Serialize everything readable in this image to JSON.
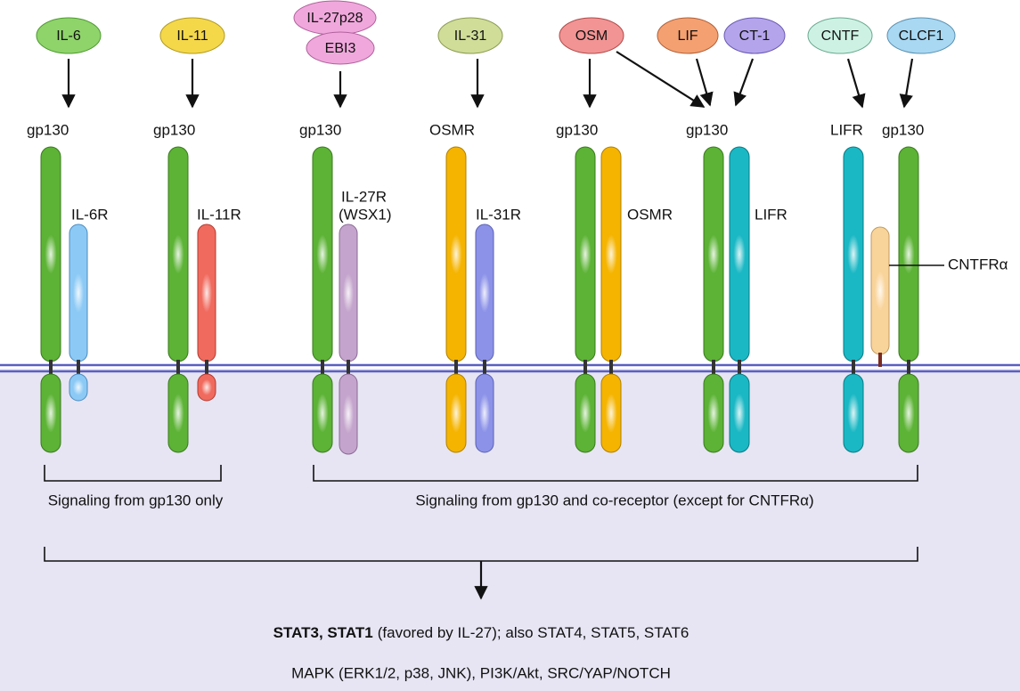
{
  "ligands": [
    {
      "label": "IL-6"
    },
    {
      "label": "IL-11"
    },
    {
      "label": "IL-27p28"
    },
    {
      "label": "EBI3"
    },
    {
      "label": "IL-31"
    },
    {
      "label": "OSM"
    },
    {
      "label": "LIF"
    },
    {
      "label": "CT-1"
    },
    {
      "label": "CNTF"
    },
    {
      "label": "CLCF1"
    }
  ],
  "receptor_labels": [
    "gp130",
    "IL-6R",
    "gp130",
    "IL-11R",
    "gp130",
    "IL-27R",
    "(WSX1)",
    "OSMR",
    "IL-31R",
    "gp130",
    "OSMR",
    "gp130",
    "LIFR",
    "LIFR",
    "gp130",
    "CNTFRα"
  ],
  "groups": [
    "Signaling from gp130 only",
    "Signaling from gp130 and co-receptor (except for CNTFRα)"
  ],
  "outputs": {
    "line1_bold": "STAT3, STAT1",
    "line1_rest": "(favored by IL-27); also STAT4, STAT5, STAT6",
    "line2": "MAPK (ERK1/2, p38, JNK), PI3K/Akt, SRC/YAP/NOTCH"
  }
}
